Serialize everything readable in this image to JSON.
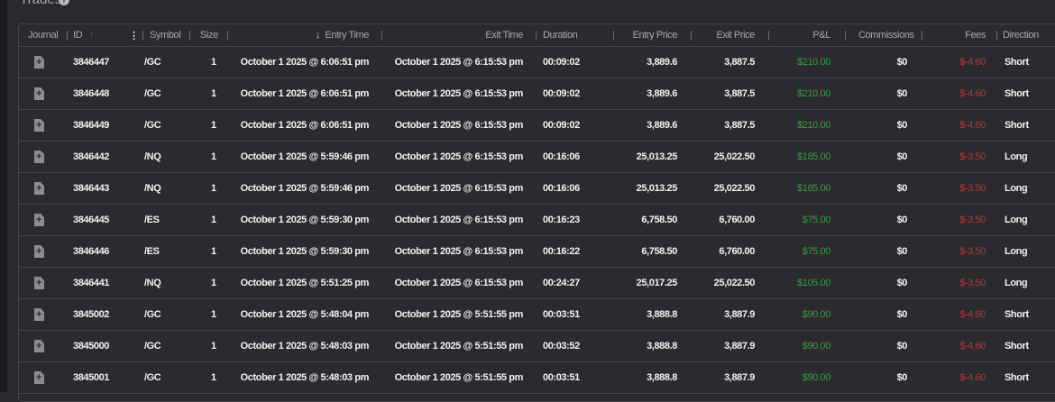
{
  "title": "Trades",
  "columns": {
    "journal": "Journal",
    "id": "ID",
    "symbol": "Symbol",
    "size": "Size",
    "entry_time": "Entry Time",
    "exit_time": "Exit Time",
    "duration": "Duration",
    "entry_price": "Entry Price",
    "exit_price": "Exit Price",
    "pnl": "P&L",
    "commissions": "Commissions",
    "fees": "Fees",
    "direction": "Direction"
  },
  "sort": {
    "column": "entry_time",
    "direction": "descending"
  },
  "colors": {
    "profit": "#3f9a45",
    "fee": "#b23a3a"
  },
  "rows": [
    {
      "id": "3846447",
      "symbol": "/GC",
      "size": "1",
      "entry_time": "October 1 2025 @ 6:06:51 pm",
      "exit_time": "October 1 2025 @ 6:15:53 pm",
      "duration": "00:09:02",
      "entry_price": "3,889.6",
      "exit_price": "3,887.5",
      "pnl": "$210.00",
      "commissions": "$0",
      "fees": "$-4.60",
      "direction": "Short"
    },
    {
      "id": "3846448",
      "symbol": "/GC",
      "size": "1",
      "entry_time": "October 1 2025 @ 6:06:51 pm",
      "exit_time": "October 1 2025 @ 6:15:53 pm",
      "duration": "00:09:02",
      "entry_price": "3,889.6",
      "exit_price": "3,887.5",
      "pnl": "$210.00",
      "commissions": "$0",
      "fees": "$-4.60",
      "direction": "Short"
    },
    {
      "id": "3846449",
      "symbol": "/GC",
      "size": "1",
      "entry_time": "October 1 2025 @ 6:06:51 pm",
      "exit_time": "October 1 2025 @ 6:15:53 pm",
      "duration": "00:09:02",
      "entry_price": "3,889.6",
      "exit_price": "3,887.5",
      "pnl": "$210.00",
      "commissions": "$0",
      "fees": "$-4.60",
      "direction": "Short"
    },
    {
      "id": "3846442",
      "symbol": "/NQ",
      "size": "1",
      "entry_time": "October 1 2025 @ 5:59:46 pm",
      "exit_time": "October 1 2025 @ 6:15:53 pm",
      "duration": "00:16:06",
      "entry_price": "25,013.25",
      "exit_price": "25,022.50",
      "pnl": "$185.00",
      "commissions": "$0",
      "fees": "$-3.50",
      "direction": "Long"
    },
    {
      "id": "3846443",
      "symbol": "/NQ",
      "size": "1",
      "entry_time": "October 1 2025 @ 5:59:46 pm",
      "exit_time": "October 1 2025 @ 6:15:53 pm",
      "duration": "00:16:06",
      "entry_price": "25,013.25",
      "exit_price": "25,022.50",
      "pnl": "$185.00",
      "commissions": "$0",
      "fees": "$-3.50",
      "direction": "Long"
    },
    {
      "id": "3846445",
      "symbol": "/ES",
      "size": "1",
      "entry_time": "October 1 2025 @ 5:59:30 pm",
      "exit_time": "October 1 2025 @ 6:15:53 pm",
      "duration": "00:16:23",
      "entry_price": "6,758.50",
      "exit_price": "6,760.00",
      "pnl": "$75.00",
      "commissions": "$0",
      "fees": "$-3.50",
      "direction": "Long"
    },
    {
      "id": "3846446",
      "symbol": "/ES",
      "size": "1",
      "entry_time": "October 1 2025 @ 5:59:30 pm",
      "exit_time": "October 1 2025 @ 6:15:53 pm",
      "duration": "00:16:22",
      "entry_price": "6,758.50",
      "exit_price": "6,760.00",
      "pnl": "$75.00",
      "commissions": "$0",
      "fees": "$-3.50",
      "direction": "Long"
    },
    {
      "id": "3846441",
      "symbol": "/NQ",
      "size": "1",
      "entry_time": "October 1 2025 @ 5:51:25 pm",
      "exit_time": "October 1 2025 @ 6:15:53 pm",
      "duration": "00:24:27",
      "entry_price": "25,017.25",
      "exit_price": "25,022.50",
      "pnl": "$105.00",
      "commissions": "$0",
      "fees": "$-3.50",
      "direction": "Long"
    },
    {
      "id": "3845002",
      "symbol": "/GC",
      "size": "1",
      "entry_time": "October 1 2025 @ 5:48:04 pm",
      "exit_time": "October 1 2025 @ 5:51:55 pm",
      "duration": "00:03:51",
      "entry_price": "3,888.8",
      "exit_price": "3,887.9",
      "pnl": "$90.00",
      "commissions": "$0",
      "fees": "$-4.60",
      "direction": "Short"
    },
    {
      "id": "3845000",
      "symbol": "/GC",
      "size": "1",
      "entry_time": "October 1 2025 @ 5:48:03 pm",
      "exit_time": "October 1 2025 @ 5:51:55 pm",
      "duration": "00:03:52",
      "entry_price": "3,888.8",
      "exit_price": "3,887.9",
      "pnl": "$90.00",
      "commissions": "$0",
      "fees": "$-4.60",
      "direction": "Short"
    },
    {
      "id": "3845001",
      "symbol": "/GC",
      "size": "1",
      "entry_time": "October 1 2025 @ 5:48:03 pm",
      "exit_time": "October 1 2025 @ 5:51:55 pm",
      "duration": "00:03:51",
      "entry_price": "3,888.8",
      "exit_price": "3,887.9",
      "pnl": "$90.00",
      "commissions": "$0",
      "fees": "$-4.60",
      "direction": "Short"
    }
  ]
}
